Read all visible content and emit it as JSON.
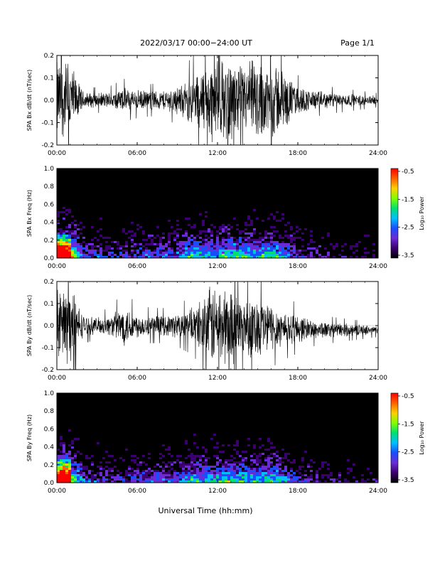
{
  "header": {
    "title": "2022/03/17  00:00−24:00 UT",
    "page": "Page 1/1"
  },
  "xaxis": {
    "label": "Universal Time (hh:mm)",
    "ticks": [
      "00:00",
      "06:00",
      "12:00",
      "18:00",
      "24:00"
    ],
    "range_hours": [
      0,
      24
    ]
  },
  "colorbar": {
    "label": "Log₁₀ Power",
    "ticks": [
      "-0.5",
      "-1.5",
      "-2.5",
      "-3.5"
    ],
    "range": [
      -3.5,
      -0.5
    ],
    "colors": [
      "#000000",
      "#3a0070",
      "#6a2bd6",
      "#1a4dff",
      "#00bfff",
      "#00e070",
      "#80ff00",
      "#ffd000",
      "#ff6000",
      "#ff0000"
    ]
  },
  "chart_data": [
    {
      "type": "line",
      "ylabel": "SPA Bx dB/dt (nT/sec)",
      "ylim": [
        -0.2,
        0.2
      ],
      "yticks": [
        "0.2",
        "0.1",
        "0.0",
        "-0.1",
        "-0.2"
      ],
      "x_hours": [
        0,
        0.25,
        0.5,
        1,
        1.5,
        2,
        3,
        4,
        5,
        6,
        7,
        8,
        9,
        9.5,
        10,
        10.5,
        11,
        11.5,
        12,
        12.5,
        13,
        13.5,
        14,
        14.5,
        15,
        15.5,
        16,
        16.5,
        17,
        17.5,
        18,
        19,
        20,
        21,
        22,
        23,
        24
      ],
      "envelope": [
        0.2,
        0.2,
        0.2,
        0.2,
        0.1,
        0.04,
        0.035,
        0.04,
        0.06,
        0.05,
        0.045,
        0.05,
        0.07,
        0.08,
        0.12,
        0.14,
        0.16,
        0.2,
        0.2,
        0.2,
        0.2,
        0.18,
        0.16,
        0.2,
        0.2,
        0.18,
        0.2,
        0.18,
        0.14,
        0.1,
        0.07,
        0.05,
        0.04,
        0.035,
        0.03,
        0.025,
        0.02
      ],
      "offset": 0.0
    },
    {
      "type": "heatmap",
      "ylabel": "SPA Bx Freq (Hz)",
      "ylim": [
        0.0,
        1.0
      ],
      "yticks": [
        "1.0",
        "0.8",
        "0.6",
        "0.4",
        "0.2",
        "0.0"
      ]
    },
    {
      "type": "line",
      "ylabel": "SPA By dB/dt (nT/sec)",
      "ylim": [
        -0.2,
        0.2
      ],
      "yticks": [
        "0.2",
        "0.1",
        "0.0",
        "-0.1",
        "-0.2"
      ],
      "x_hours": [
        0,
        0.25,
        0.5,
        1,
        1.5,
        2,
        3,
        4,
        5,
        6,
        7,
        8,
        9,
        9.5,
        10,
        10.5,
        11,
        11.5,
        12,
        12.5,
        13,
        13.5,
        14,
        14.5,
        15,
        15.5,
        16,
        16.5,
        17,
        17.5,
        18,
        19,
        20,
        21,
        22,
        23,
        24
      ],
      "envelope": [
        0.2,
        0.2,
        0.2,
        0.2,
        0.12,
        0.05,
        0.04,
        0.05,
        0.1,
        0.06,
        0.05,
        0.05,
        0.06,
        0.07,
        0.08,
        0.1,
        0.16,
        0.2,
        0.2,
        0.2,
        0.2,
        0.16,
        0.14,
        0.16,
        0.15,
        0.14,
        0.12,
        0.1,
        0.09,
        0.08,
        0.07,
        0.05,
        0.04,
        0.035,
        0.03,
        0.025,
        0.02
      ],
      "offset": -0.02
    },
    {
      "type": "heatmap",
      "ylabel": "SPA By Freq (Hz)",
      "ylim": [
        0.0,
        1.0
      ],
      "yticks": [
        "1.0",
        "0.8",
        "0.6",
        "0.4",
        "0.2",
        "0.0"
      ]
    }
  ]
}
